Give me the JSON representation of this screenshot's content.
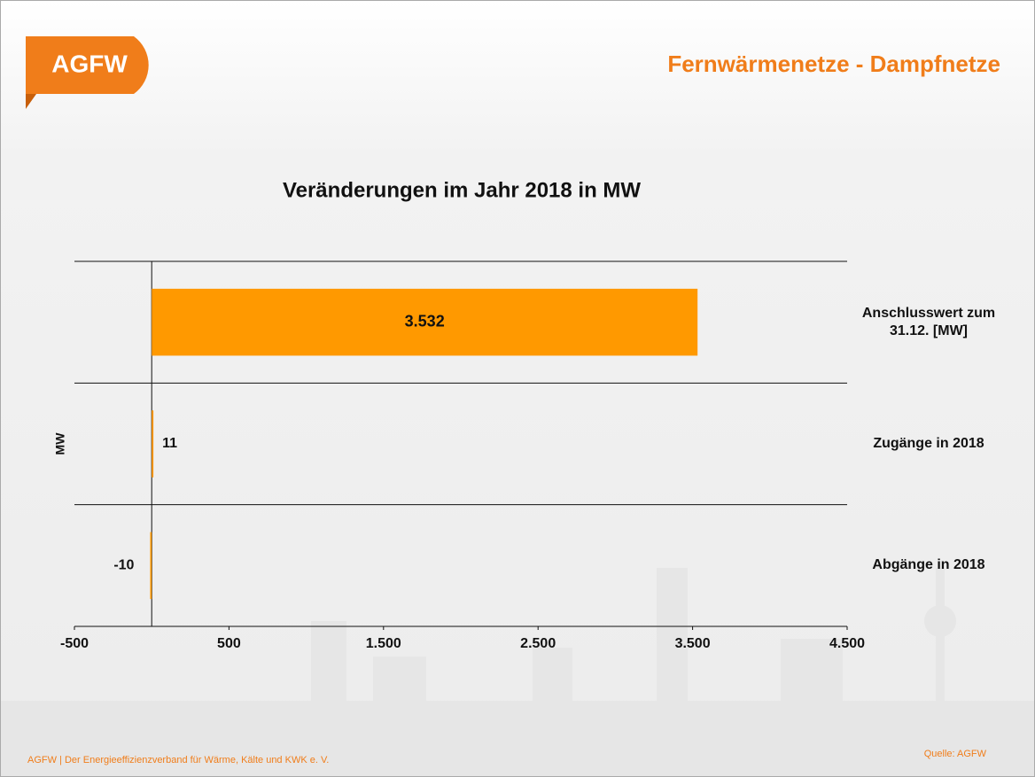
{
  "header": {
    "logo": "AGFW",
    "title": "Fernwärmenetze - Dampfnetze"
  },
  "chart_data": {
    "type": "hbar",
    "title": "Veränderungen im Jahr 2018 in MW",
    "y_label": "MW",
    "categories": [
      "Anschlusswert zum 31.12. [MW]",
      "Zugänge in 2018",
      "Abgänge in 2018"
    ],
    "values": [
      3532,
      11,
      -10
    ],
    "value_labels": [
      "3.532",
      "11",
      "-10"
    ],
    "color": "#ff9900",
    "xlim": [
      -500,
      4500
    ],
    "xticks": [
      -500,
      500,
      {
        "value": 1500,
        "label": "1.500"
      },
      {
        "value": 2500,
        "label": "2.500"
      },
      {
        "value": 3500,
        "label": "3.500"
      },
      {
        "value": 4500,
        "label": "4.500"
      }
    ]
  },
  "footer": {
    "left": "AGFW | Der Energieeffizienzverband für Wärme, Kälte und KWK e. V.",
    "source": "Quelle: AGFW"
  }
}
